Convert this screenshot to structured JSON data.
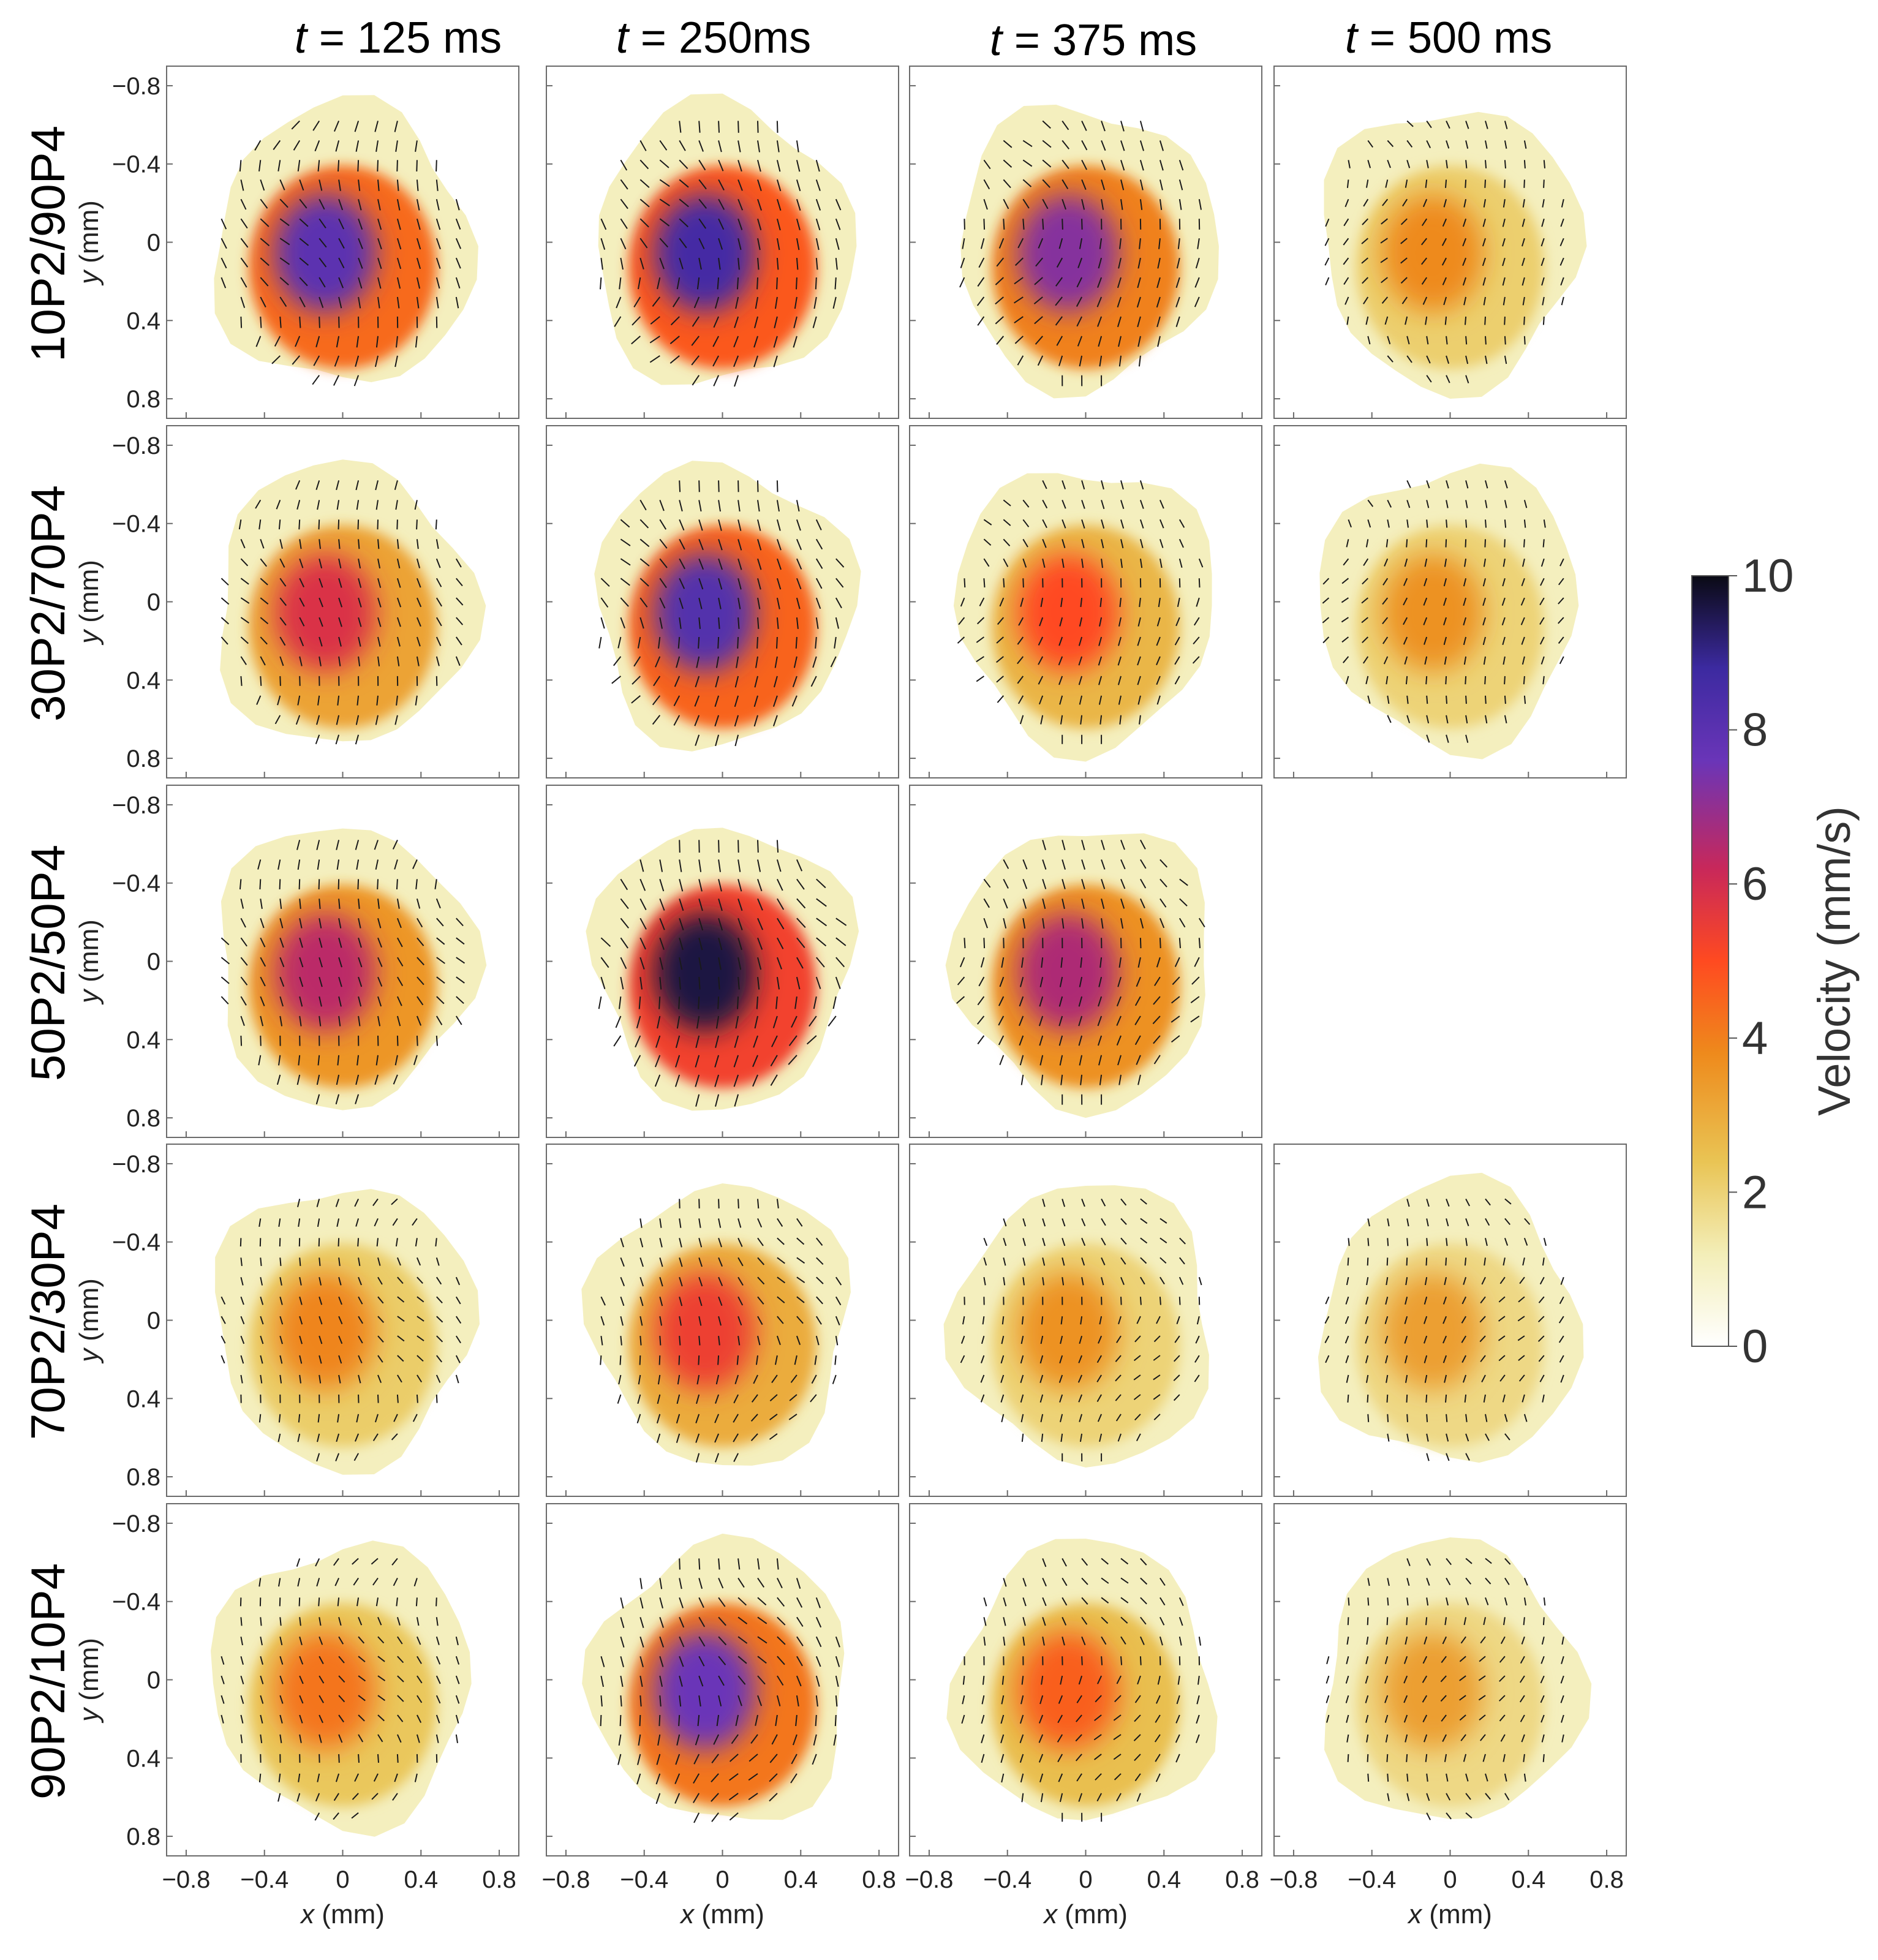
{
  "chart_data": {
    "type": "heatmap",
    "title": "",
    "column_titles": [
      {
        "t": "t",
        "rest": " = 125 ms"
      },
      {
        "t": "t",
        "rest": " = 250ms"
      },
      {
        "t": "t",
        "rest": " = 375 ms"
      },
      {
        "t": "t",
        "rest": " = 500 ms"
      }
    ],
    "row_labels": [
      "10P2/90P4",
      "30P2/70P4",
      "50P2/50P4",
      "70P2/30P4",
      "90P2/10P4"
    ],
    "xlabel": {
      "var": "x",
      "unit": "(mm)"
    },
    "ylabel": {
      "var": "y",
      "unit": "(mm)"
    },
    "xlim": [
      -0.9,
      0.9
    ],
    "ylim": [
      0.9,
      -0.9
    ],
    "x_ticks": [
      "−0.8",
      "−0.4",
      "0",
      "0.4",
      "0.8"
    ],
    "y_ticks": [
      "−0.8",
      "−0.4",
      "0",
      "0.4",
      "0.8"
    ],
    "colorbar": {
      "label": "Velocity (mm/s)",
      "range": [
        0,
        10
      ],
      "ticks": [
        "0",
        "2",
        "4",
        "6",
        "8",
        "10"
      ],
      "colors": [
        "#ffffff",
        "#f3eeb8",
        "#e9c454",
        "#ee8a1c",
        "#ff4a20",
        "#c8285a",
        "#6a35b8",
        "#3c2aa0",
        "#0a0a14"
      ]
    },
    "panels_missing": [
      [
        2,
        3
      ]
    ],
    "peak_speed_mm_s": [
      [
        8.0,
        8.6,
        7.2,
        3.8
      ],
      [
        5.8,
        8.2,
        5.0,
        3.6
      ],
      [
        6.4,
        9.6,
        6.6,
        null
      ],
      [
        3.9,
        5.4,
        3.6,
        3.3
      ],
      [
        4.2,
        7.6,
        4.6,
        3.3
      ]
    ]
  }
}
